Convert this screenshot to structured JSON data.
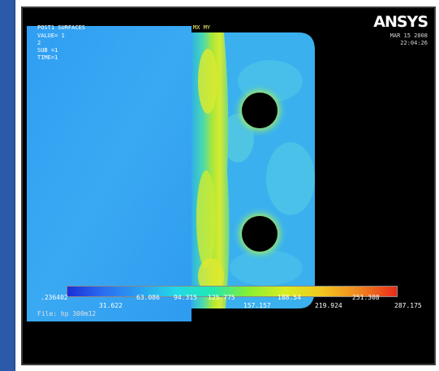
{
  "app": {
    "logo_text": "ANSYS",
    "date": "MAR 15 2008",
    "time": "22:04:26"
  },
  "plot": {
    "title": "POST1 SURFACES",
    "mx_label": "MX MY",
    "value_line": "VALUE= 1",
    "line2": "2",
    "sub_line": "SUB =1",
    "time_line": "TIME=1",
    "file_label": "File: hp 300m12"
  },
  "colorbar": {
    "top_labels": [
      ".236402",
      "63.086",
      "94.315",
      "125.775",
      "188.54",
      "251.308"
    ],
    "bottom_labels": [
      "31.622",
      "157.157",
      "219.924",
      "287.175"
    ],
    "colors": [
      "#1a2fd8",
      "#2a6ef0",
      "#2aa0f0",
      "#22d8e8",
      "#22e8b0",
      "#88ee33",
      "#d8ee22",
      "#f0c820",
      "#f08a20",
      "#e82a1a"
    ]
  },
  "colors": {
    "viewport_background": "#000000",
    "left_bar": "#2a5aa8",
    "plate_base": "#3aa6f0",
    "logo_accent": "#e02222"
  }
}
